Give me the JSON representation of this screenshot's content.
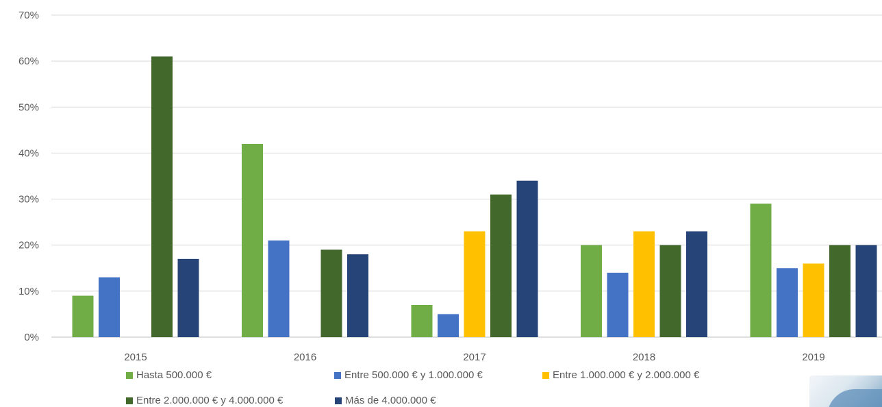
{
  "chart_data": {
    "type": "bar",
    "title": "",
    "xlabel": "",
    "ylabel": "",
    "categories": [
      "2015",
      "2016",
      "2017",
      "2018",
      "2019"
    ],
    "ylim": [
      0,
      70
    ],
    "yticks": [
      "0%",
      "10%",
      "20%",
      "30%",
      "40%",
      "50%",
      "60%",
      "70%"
    ],
    "grid": true,
    "legend_position": "bottom",
    "series": [
      {
        "name": "Hasta 500.000 €",
        "color": "#70ad47",
        "values": [
          9,
          42,
          7,
          20,
          29
        ]
      },
      {
        "name": "Entre 500.000 € y 1.000.000 €",
        "color": "#4472c4",
        "values": [
          13,
          21,
          5,
          14,
          15
        ]
      },
      {
        "name": "Entre 1.000.000 € y 2.000.000 €",
        "color": "#ffc000",
        "values": [
          0,
          0,
          23,
          23,
          16
        ]
      },
      {
        "name": "Entre 2.000.000 € y 4.000.000 €",
        "color": "#43682b",
        "values": [
          61,
          19,
          31,
          20,
          20
        ]
      },
      {
        "name": "Más de 4.000.000 €",
        "color": "#264478",
        "values": [
          17,
          18,
          34,
          23,
          20
        ]
      }
    ]
  }
}
